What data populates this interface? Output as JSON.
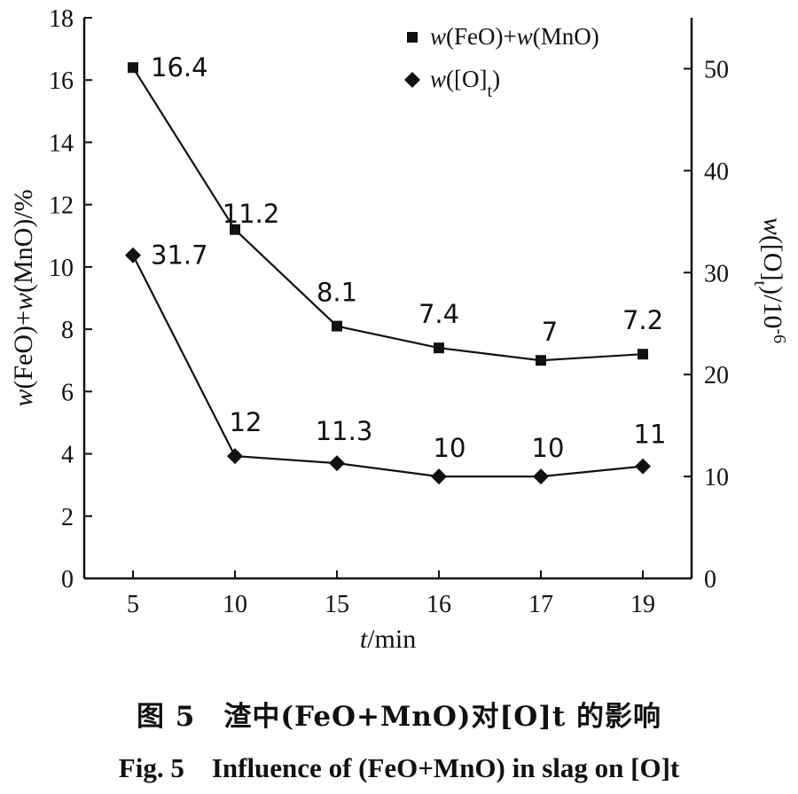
{
  "chart_data": {
    "type": "line",
    "x_axis": {
      "label": "t/min",
      "categories": [
        "5",
        "10",
        "15",
        "16",
        "17",
        "19"
      ]
    },
    "y_left": {
      "label": "w(FeO)+w(MnO)/%",
      "ylim": [
        0,
        18
      ],
      "ticks": [
        "0",
        "2",
        "4",
        "6",
        "8",
        "10",
        "12",
        "14",
        "16",
        "18"
      ]
    },
    "y_right": {
      "label": "w([O]t)/10-6",
      "ylim": [
        0,
        55
      ],
      "ticks": [
        "0",
        "10",
        "20",
        "30",
        "40",
        "50"
      ]
    },
    "series": [
      {
        "name": "w(FeO)+w(MnO)",
        "axis": "left",
        "marker": "square",
        "values": [
          16.4,
          11.2,
          8.1,
          7.4,
          7.0,
          7.2
        ],
        "labels": [
          "16.4",
          "11.2",
          "8.1",
          "7.4",
          "7",
          "7.2"
        ]
      },
      {
        "name": "w([O]t)",
        "axis": "right",
        "marker": "diamond",
        "values": [
          31.7,
          12,
          11.3,
          10,
          10,
          11
        ],
        "labels": [
          "31.7",
          "12",
          "11.3",
          "10",
          "10",
          "11"
        ]
      }
    ],
    "legend_position": "top-right",
    "grid": false
  },
  "caption": {
    "cn": "图 5　渣中(FeO+MnO)对[O]t 的影响",
    "en": "Fig. 5　Influence of (FeO+MnO) in slag on [O]t"
  }
}
